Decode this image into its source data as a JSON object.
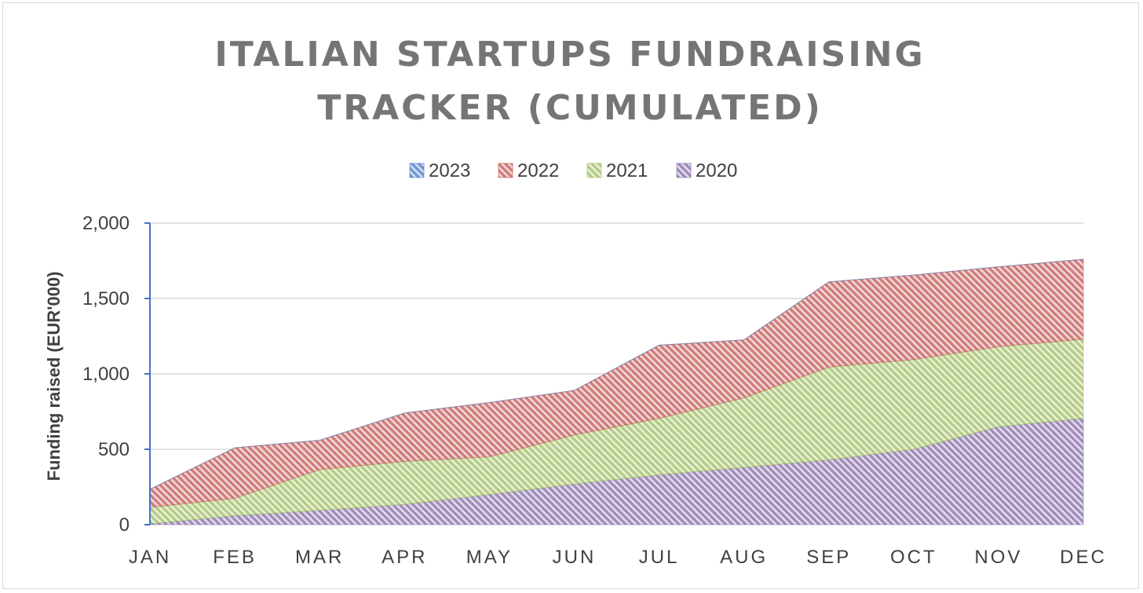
{
  "colors": {
    "s2023": "#4472c4",
    "s2022": "#c0504d",
    "s2021": "#9bbb59",
    "s2020": "#8064a2",
    "axis": "#4472c4",
    "grid": "#d9d9d9",
    "title": "#757575"
  },
  "chart_data": {
    "type": "area",
    "stacked": true,
    "fill_pattern": "diagonal-hatch",
    "title_lines": [
      "ITALIAN STARTUPS FUNDRAISING",
      "TRACKER (CUMULATED)"
    ],
    "ylabel": "Funding raised (EUR'000)",
    "xlabel": "",
    "categories": [
      "JAN",
      "FEB",
      "MAR",
      "APR",
      "MAY",
      "JUN",
      "JUL",
      "AUG",
      "SEP",
      "OCT",
      "NOV",
      "DEC"
    ],
    "ylim": [
      0,
      2000
    ],
    "yticks": [
      0,
      500,
      1000,
      1500,
      2000
    ],
    "ytick_labels": [
      "0",
      "500",
      "1,000",
      "1,500",
      "2,000"
    ],
    "grid": true,
    "legend_position": "top",
    "legend": [
      "2023",
      "2022",
      "2021",
      "2020"
    ],
    "series": [
      {
        "name": "2020",
        "color_key": "s2020",
        "values": [
          5,
          60,
          95,
          135,
          200,
          270,
          330,
          380,
          430,
          500,
          650,
          705
        ]
      },
      {
        "name": "2021",
        "color_key": "s2021",
        "values": [
          110,
          115,
          270,
          285,
          250,
          325,
          375,
          460,
          615,
          595,
          530,
          525
        ]
      },
      {
        "name": "2022",
        "color_key": "s2022",
        "values": [
          120,
          335,
          195,
          320,
          360,
          295,
          485,
          385,
          565,
          560,
          530,
          530
        ]
      },
      {
        "name": "2023",
        "color_key": "s2023",
        "values": [
          0,
          0,
          0,
          0,
          0,
          0,
          0,
          0,
          0,
          0,
          0,
          0
        ]
      }
    ]
  }
}
